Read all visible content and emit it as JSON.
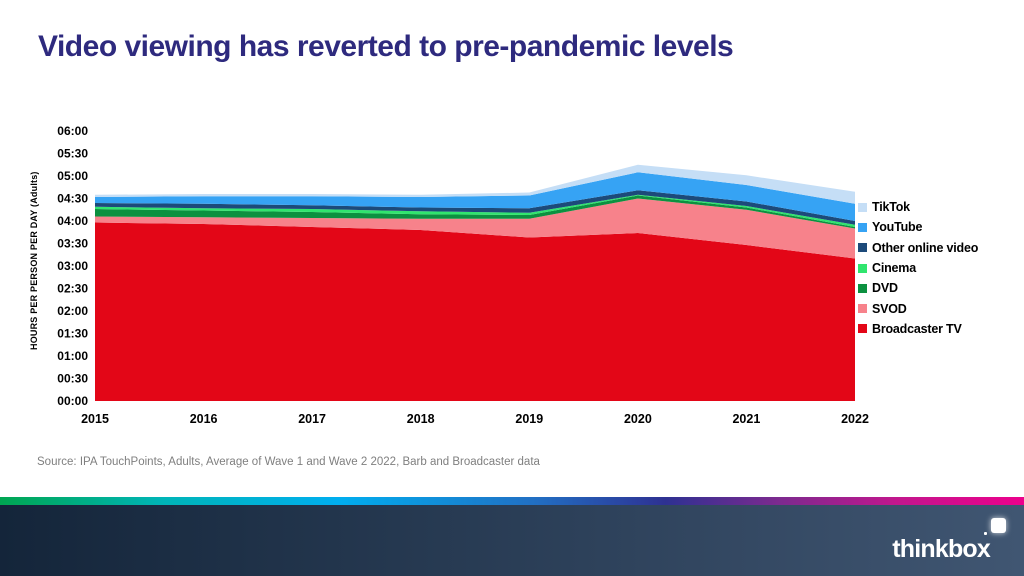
{
  "title": "Video viewing has reverted to pre-pandemic levels",
  "source": "Source: IPA TouchPoints, Adults,  Average  of Wave 1 and Wave 2 2022, Barb and Broadcaster data",
  "logo": {
    "text": "thinkbox"
  },
  "colors": {
    "title": "#2e2a7e",
    "axis_text": "#000000",
    "source_text": "#7f7f7f",
    "footer_band": [
      "#14253a",
      "#405672"
    ],
    "footer_strip_stops": [
      "#00a651 0%",
      "#00b5b8 16%",
      "#00aeef 33%",
      "#2170c4 52%",
      "#2e3192 65%",
      "#7c2a8f 76%",
      "#c4168d 88%",
      "#ec008c 100%"
    ]
  },
  "chart_data": {
    "type": "area",
    "stacked": true,
    "title": "Video viewing has reverted to pre-pandemic levels",
    "xlabel": "",
    "ylabel": "HOURS PER PERSON PER DAY (Adults)",
    "x": [
      "2015",
      "2016",
      "2017",
      "2018",
      "2019",
      "2020",
      "2021",
      "2022"
    ],
    "unit": "minutes per person per day",
    "ylim_minutes": [
      0,
      360
    ],
    "yticks_top_to_bottom": [
      "06:00",
      "05:30",
      "05:00",
      "04:30",
      "04:00",
      "03:30",
      "03:00",
      "02:30",
      "02:00",
      "01:30",
      "01:00",
      "00:30",
      "00:00"
    ],
    "grid": false,
    "legend_position": "right",
    "legend_order_top_to_bottom": [
      "TikTok",
      "YouTube",
      "Other online video",
      "Cinema",
      "DVD",
      "SVOD",
      "Broadcaster TV"
    ],
    "series_bottom_to_top": [
      {
        "name": "Broadcaster TV",
        "color": "#e30617",
        "values_minutes": [
          238,
          236,
          232,
          228,
          218,
          224,
          208,
          190
        ]
      },
      {
        "name": "SVOD",
        "color": "#f7828b",
        "values_minutes": [
          8,
          9,
          12,
          15,
          25,
          46,
          47,
          40
        ]
      },
      {
        "name": "DVD",
        "color": "#0c9140",
        "values_minutes": [
          10,
          9,
          8,
          6,
          5,
          4,
          3,
          2
        ]
      },
      {
        "name": "Cinema",
        "color": "#30e56e",
        "values_minutes": [
          3,
          3,
          4,
          4,
          3,
          1,
          2,
          3
        ]
      },
      {
        "name": "Other online video",
        "color": "#1c4a7a",
        "values_minutes": [
          5,
          6,
          5,
          5,
          6,
          6,
          6,
          5
        ]
      },
      {
        "name": "YouTube",
        "color": "#36a3f4",
        "values_minutes": [
          8,
          10,
          12,
          14,
          17,
          24,
          22,
          23
        ]
      },
      {
        "name": "TikTok",
        "color": "#c5def6",
        "values_minutes": [
          3,
          3,
          3,
          3,
          4,
          10,
          13,
          16
        ]
      }
    ]
  }
}
